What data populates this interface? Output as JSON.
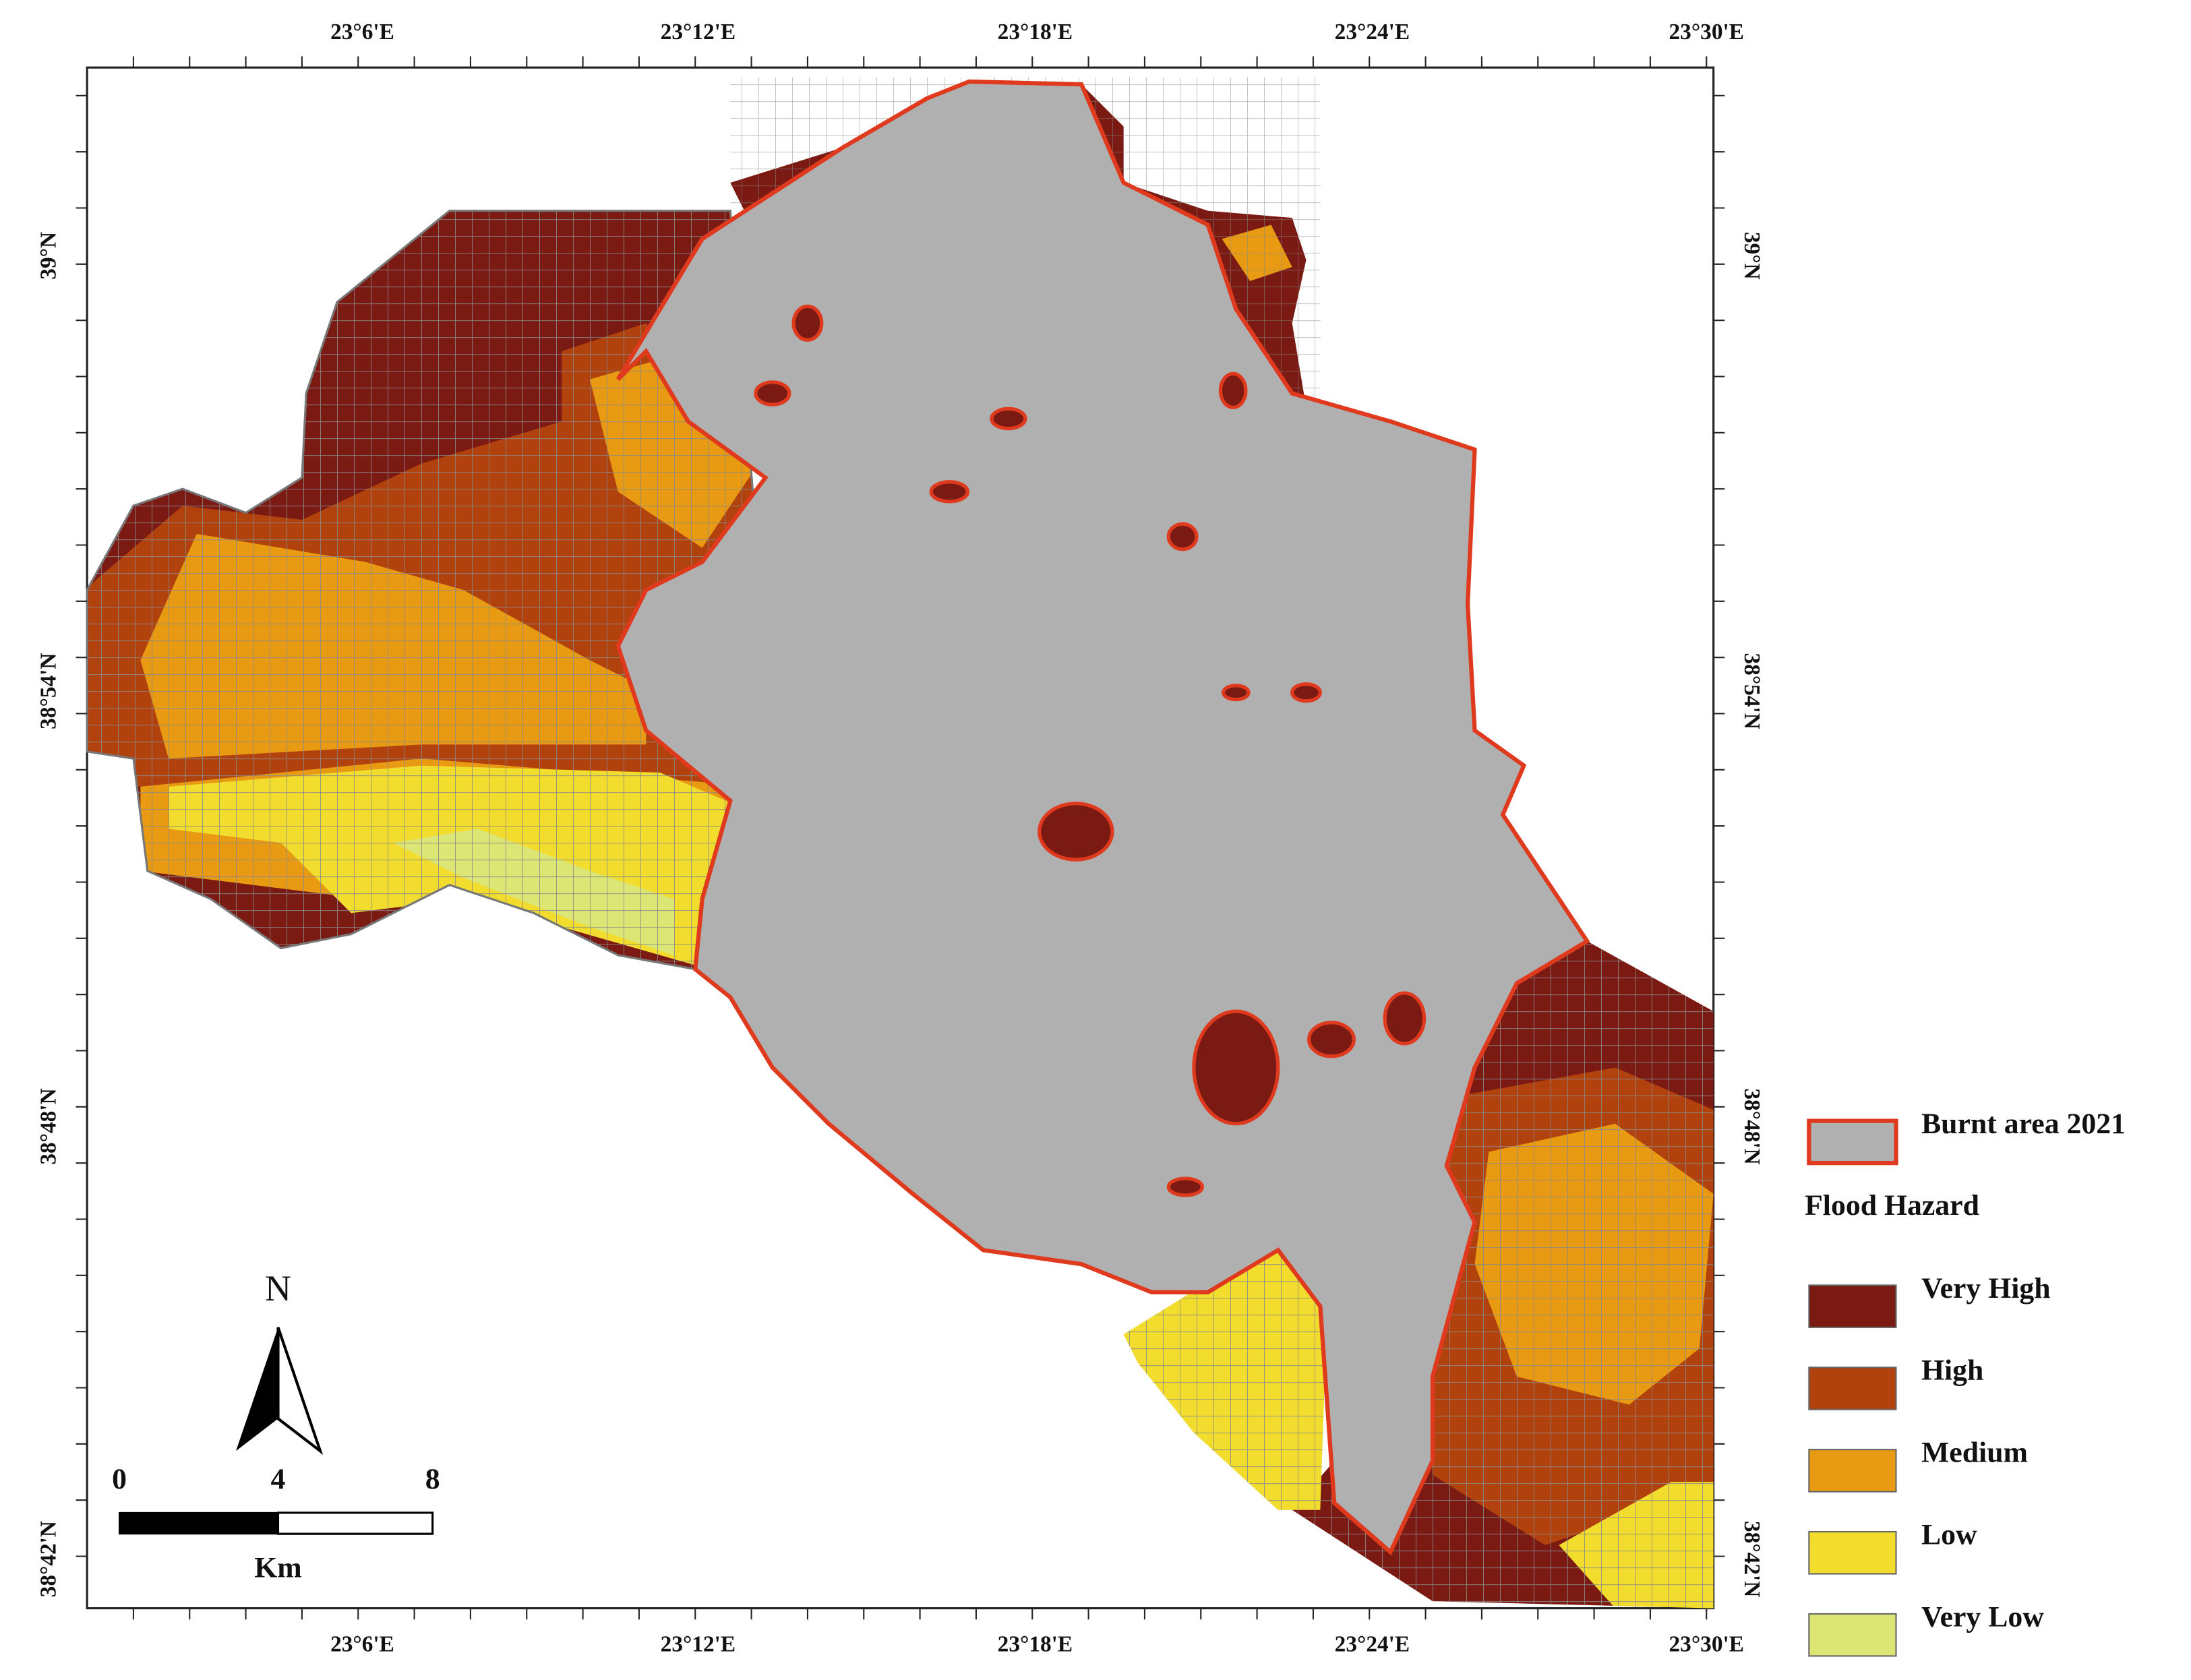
{
  "x_labels": [
    "23°6'E",
    "23°12'E",
    "23°18'E",
    "23°24'E",
    "23°30'E"
  ],
  "y_labels": [
    "39°N",
    "38°54'N",
    "38°48'N",
    "38°42'N"
  ],
  "legend": {
    "burnt": {
      "label": "Burnt area 2021",
      "color": "#b0b0b0",
      "outline": "#e03a1e"
    },
    "title": "Flood Hazard",
    "classes": [
      {
        "label": "Very High",
        "color": "#7a1a12"
      },
      {
        "label": "High",
        "color": "#b1420d"
      },
      {
        "label": "Medium",
        "color": "#e79a12"
      },
      {
        "label": "Low",
        "color": "#f2dc2e"
      },
      {
        "label": "Very Low",
        "color": "#dbe675"
      }
    ]
  },
  "north": "N",
  "scale": {
    "labels": [
      "0",
      "4",
      "8"
    ],
    "unit": "Km"
  }
}
